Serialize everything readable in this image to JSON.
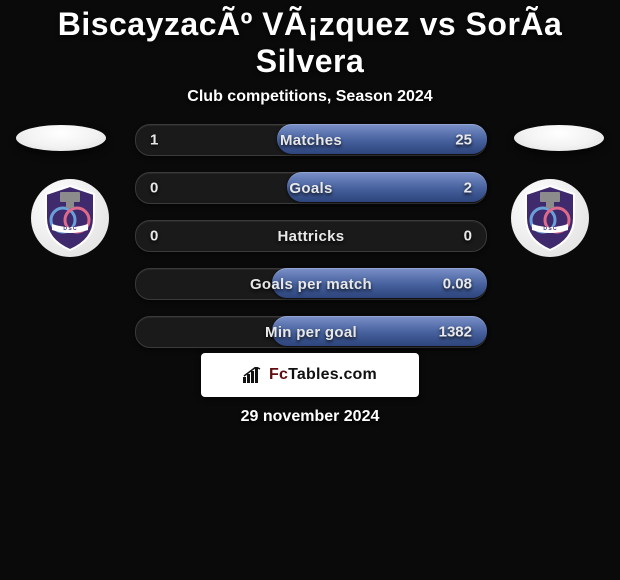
{
  "title": "BiscayzacÃº VÃ¡zquez vs SorÃ­a Silvera",
  "subtitle": "Club competitions, Season 2024",
  "date": "29 november 2024",
  "brand": {
    "prefix": "Fc",
    "suffix": "Tables.com"
  },
  "colors": {
    "highlight_gradient_top": "#7a90c9",
    "highlight_gradient_mid": "#46619d",
    "highlight_gradient_bot": "#2d447c",
    "row_bg": "#1a1a1a",
    "row_border": "#3a3a3a",
    "page_bg": "#0a0a0a",
    "text": "#ffffff",
    "brand_fc": "#5f0d10",
    "badge_shield": "#3f2a6e",
    "badge_circle_l": "#6aa0d8",
    "badge_circle_r": "#e06a8a",
    "badge_band": "#8c8c8c",
    "footer_bg": "#ffffff"
  },
  "rows": [
    {
      "label": "Matches",
      "left": "1",
      "right": "25",
      "highlight": "right",
      "hl_width": 210
    },
    {
      "label": "Goals",
      "left": "0",
      "right": "2",
      "highlight": "right",
      "hl_width": 200
    },
    {
      "label": "Hattricks",
      "left": "0",
      "right": "0",
      "highlight": "none",
      "hl_width": 0
    },
    {
      "label": "Goals per match",
      "left": "",
      "right": "0.08",
      "highlight": "right",
      "hl_width": 215
    },
    {
      "label": "Min per goal",
      "left": "",
      "right": "1382",
      "highlight": "right",
      "hl_width": 215
    }
  ]
}
